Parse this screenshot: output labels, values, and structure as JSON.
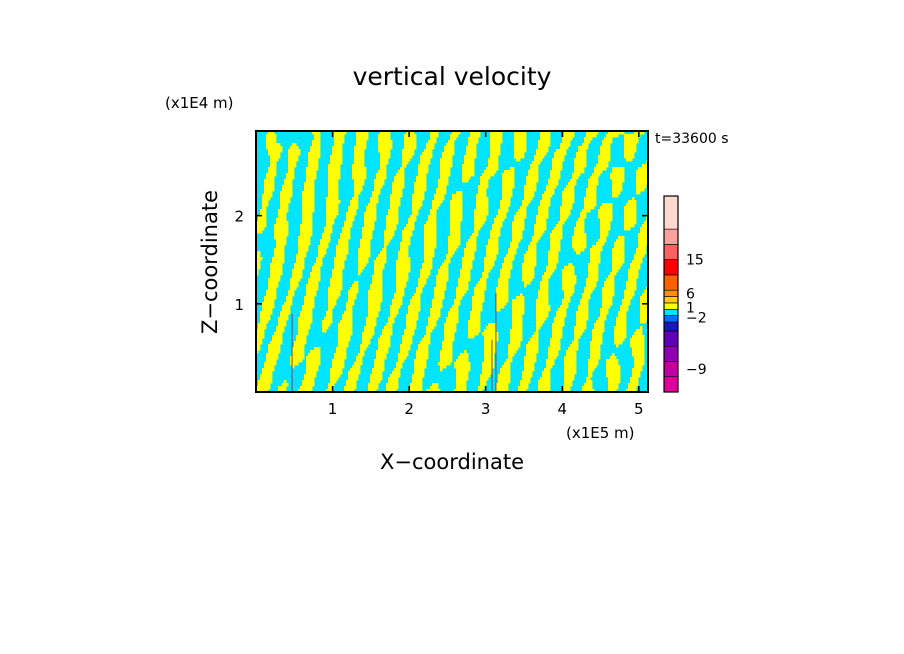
{
  "chart_data": {
    "type": "heatmap",
    "title": "vertical velocity",
    "xlabel": "X−coordinate",
    "ylabel": "Z−coordinate",
    "x_unit": "(x1E5 m)",
    "y_unit": "(x1E4 m)",
    "time_label": "t=33600 s",
    "xlim": [
      0,
      5.12
    ],
    "ylim": [
      0,
      2.96
    ],
    "x_ticks": [
      {
        "value": 1,
        "label": "1"
      },
      {
        "value": 2,
        "label": "2"
      },
      {
        "value": 3,
        "label": "3"
      },
      {
        "value": 4,
        "label": "4"
      },
      {
        "value": 5,
        "label": "5"
      }
    ],
    "y_ticks": [
      {
        "value": 1,
        "label": "1"
      },
      {
        "value": 2,
        "label": "2"
      }
    ],
    "dominant_fields": {
      "updraft_color": "#ffff00",
      "downdraft_color": "#00e5ff"
    },
    "colorbar": {
      "levels": [
        {
          "color": "#e0009a"
        },
        {
          "color": "#c000a0"
        },
        {
          "color": "#9000b0"
        },
        {
          "color": "#6000b8"
        },
        {
          "color": "#1818c0"
        },
        {
          "color": "#0070ff"
        },
        {
          "color": "#00e5ff"
        },
        {
          "color": "#ffff00"
        },
        {
          "color": "#ffd000"
        },
        {
          "color": "#ff9000"
        },
        {
          "color": "#ff6000"
        },
        {
          "color": "#ff0000"
        },
        {
          "color": "#ff6060"
        },
        {
          "color": "#ffa0a0"
        },
        {
          "color": "#ffd8d0"
        }
      ],
      "labels": [
        {
          "text": "15",
          "level_index": 12
        },
        {
          "text": "6",
          "level_index": 9.5
        },
        {
          "text": "1",
          "level_index": 7.3
        },
        {
          "text": "−2",
          "level_index": 5.7
        },
        {
          "text": "−9",
          "level_index": 1.5
        }
      ]
    }
  }
}
